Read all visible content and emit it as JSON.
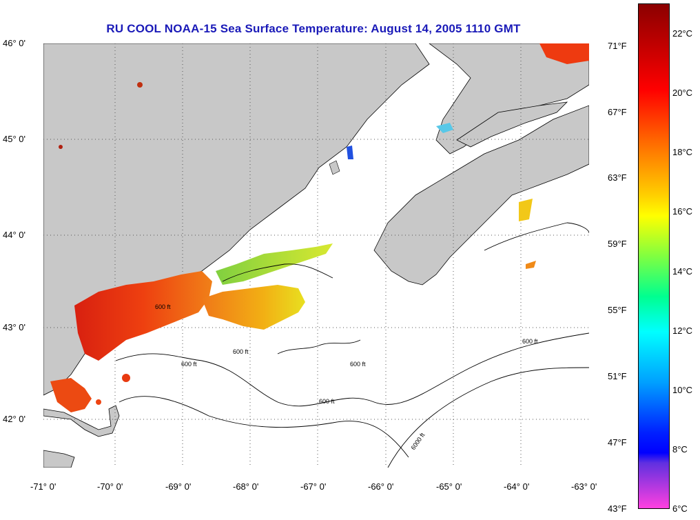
{
  "title": "RU COOL  NOAA-15  Sea Surface Temperature:  August 14, 2005 1110 GMT",
  "latitude_labels": [
    "46° 0'",
    "45° 0'",
    "44° 0'",
    "43° 0'",
    "42° 0'"
  ],
  "longitude_labels": [
    "-71° 0'",
    "-70° 0'",
    "-69° 0'",
    "-68° 0'",
    "-67° 0'",
    "-66° 0'",
    "-65° 0'",
    "-64° 0'",
    "-63° 0'"
  ],
  "contour_label": "600 ft",
  "contour_label_deep": "6000 ft",
  "fahrenheit_labels": [
    "71°F",
    "67°F",
    "63°F",
    "59°F",
    "55°F",
    "51°F",
    "47°F",
    "43°F"
  ],
  "celsius_labels": [
    "22°C",
    "20°C",
    "18°C",
    "16°C",
    "14°C",
    "12°C",
    "10°C",
    "8°C",
    "6°C"
  ],
  "colors": {
    "land": "#c8c8c8",
    "ocean": "#ffffff",
    "title": "#1a1ab8",
    "warm": "#e8300e",
    "mid": "#f2a010",
    "cool": "#b8e030"
  }
}
